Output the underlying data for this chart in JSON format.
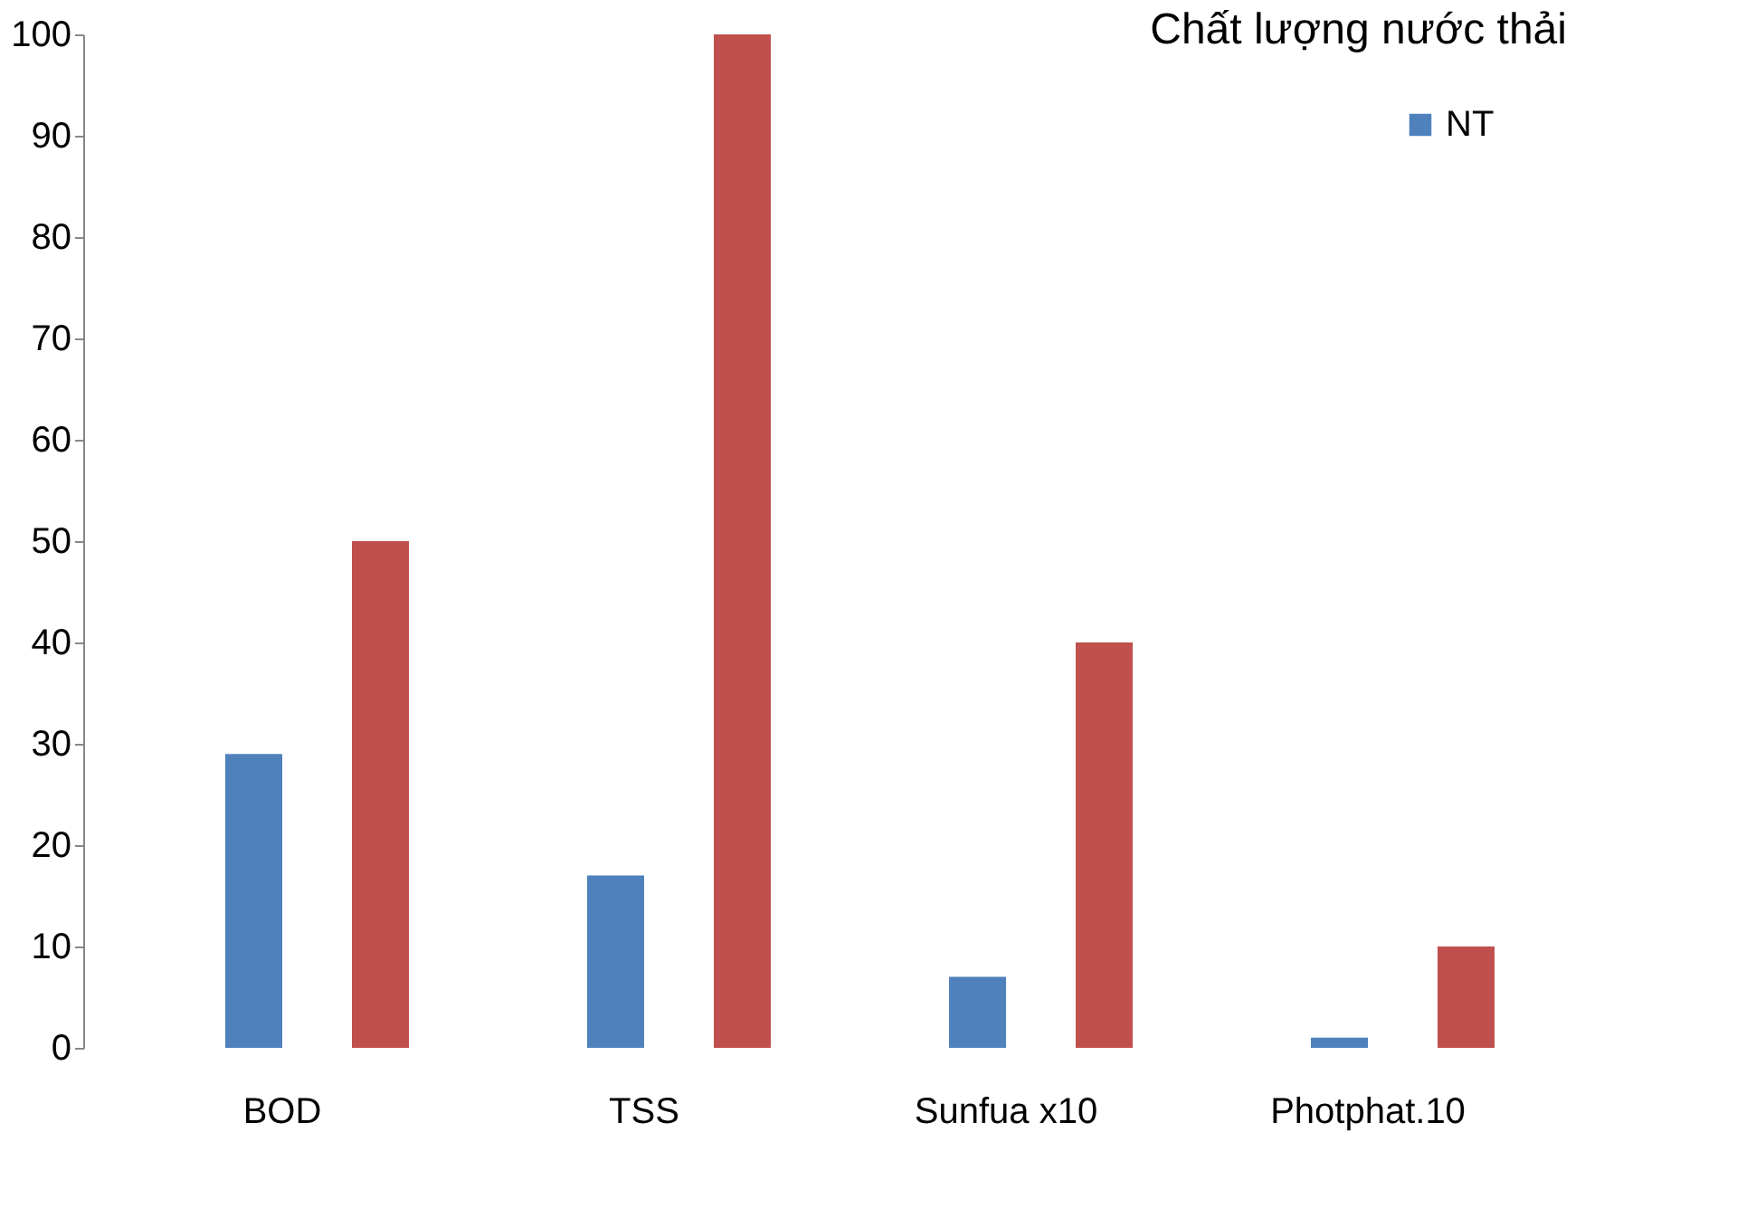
{
  "chart_data": {
    "type": "bar",
    "title": "Chất lượng nước thải",
    "categories": [
      "BOD",
      "TSS",
      "Sunfua x10",
      "Photphat.10"
    ],
    "series": [
      {
        "name": "NT",
        "color": "#4f81bd",
        "values": [
          29,
          17,
          7,
          1
        ]
      },
      {
        "color": "#c0504d",
        "values": [
          50,
          100,
          40,
          10
        ]
      }
    ],
    "ylim": [
      0,
      100
    ],
    "yticks": [
      0,
      10,
      20,
      30,
      40,
      50,
      60,
      70,
      80,
      90,
      100
    ],
    "grid": false,
    "legend": "top right"
  }
}
